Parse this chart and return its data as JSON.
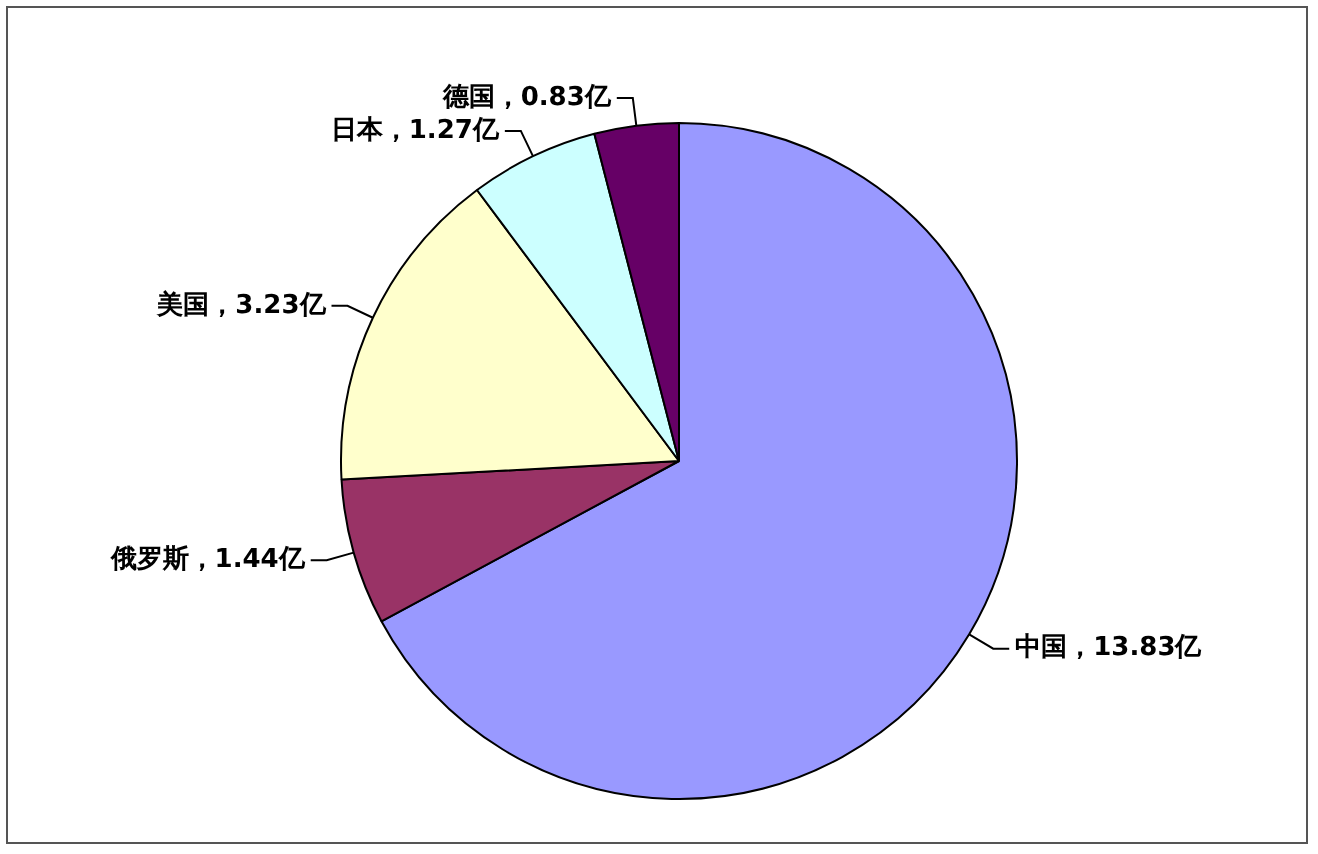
{
  "chart_data": {
    "type": "pie",
    "categories": [
      "中国",
      "俄罗斯",
      "美国",
      "日本",
      "德国"
    ],
    "values": [
      13.83,
      1.44,
      3.23,
      1.27,
      0.83
    ],
    "colors": [
      "#9999ff",
      "#993366",
      "#ffffcc",
      "#ccffff",
      "#660066"
    ],
    "value_labels": [
      "，13.83亿",
      "，1.44亿",
      "，3.23亿",
      "，1.27亿",
      "，0.83亿"
    ],
    "legend": false
  }
}
